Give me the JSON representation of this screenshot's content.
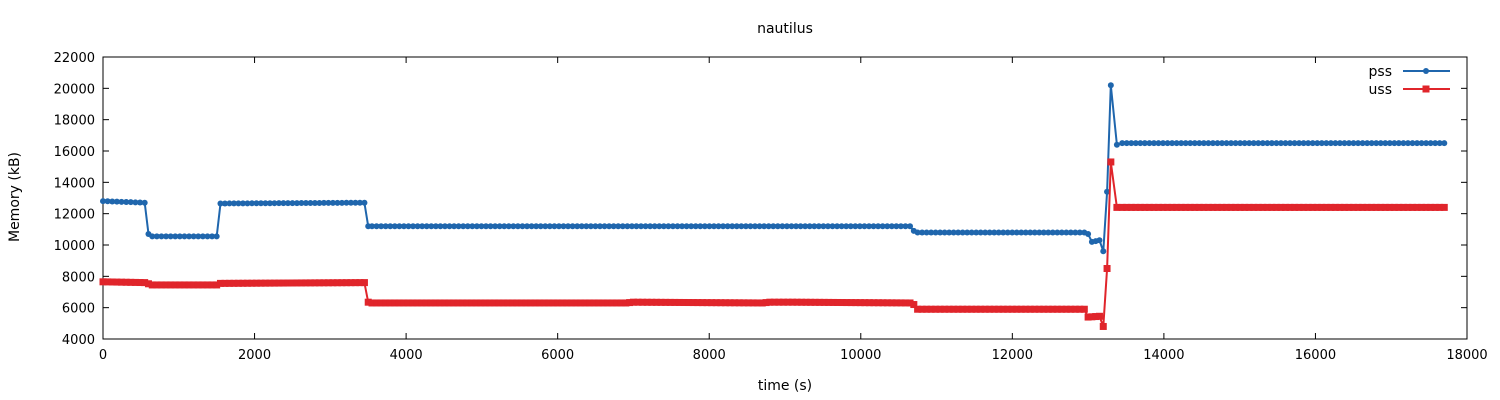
{
  "chart_data": {
    "type": "line",
    "title": "nautilus",
    "xlabel": "time (s)",
    "ylabel": "Memory (kB)",
    "xlim": [
      0,
      18000
    ],
    "ylim": [
      4000,
      22000
    ],
    "xticks": [
      "0",
      "2000",
      "4000",
      "6000",
      "8000",
      "10000",
      "12000",
      "14000",
      "16000",
      "18000"
    ],
    "yticks": [
      "4000",
      "6000",
      "8000",
      "10000",
      "12000",
      "14000",
      "16000",
      "18000",
      "20000",
      "22000"
    ],
    "grid": false,
    "legend_position": "top-right",
    "series": [
      {
        "name": "pss",
        "color": "#1f66ad",
        "marker": "circle",
        "x": [
          0,
          550,
          600,
          650,
          1500,
          1550,
          3450,
          3500,
          3550,
          10650,
          10700,
          10750,
          12950,
          13000,
          13050,
          13150,
          13200,
          13250,
          13300,
          13380,
          13450,
          17700
        ],
        "y": [
          12800,
          12700,
          10700,
          10550,
          10550,
          12650,
          12700,
          11200,
          11200,
          11200,
          10900,
          10800,
          10800,
          10700,
          10200,
          10300,
          9600,
          13400,
          20200,
          16400,
          16500,
          16500
        ]
      },
      {
        "name": "uss",
        "color": "#e0252b",
        "marker": "square",
        "x": [
          0,
          550,
          650,
          1500,
          1550,
          3450,
          3500,
          3550,
          6900,
          7000,
          8700,
          8800,
          9100,
          10650,
          10700,
          10750,
          12950,
          13000,
          13150,
          13200,
          13250,
          13300,
          13380,
          13450,
          17700
        ],
        "y": [
          7650,
          7600,
          7450,
          7450,
          7550,
          7600,
          6350,
          6300,
          6300,
          6350,
          6300,
          6350,
          6350,
          6300,
          6200,
          5900,
          5900,
          5400,
          5450,
          4800,
          8500,
          15300,
          12400,
          12400,
          12400
        ]
      }
    ]
  }
}
